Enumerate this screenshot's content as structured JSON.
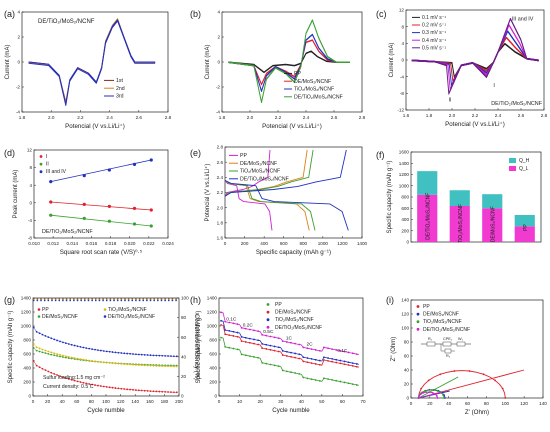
{
  "figure": {
    "panel_letters": [
      "(a)",
      "(b)",
      "(c)",
      "(d)",
      "(e)",
      "(f)",
      "(g)",
      "(h)",
      "(i)"
    ],
    "colors": {
      "black": "#222222",
      "red": "#e0202a",
      "green": "#3aa030",
      "blue": "#2030c0",
      "magenta": "#d020d0",
      "orange": "#e08018",
      "brown": "#8a2a10",
      "purple": "#6a1a8a",
      "gold": "#d8b810",
      "teal": "#40c0c0"
    }
  },
  "chart_data": [
    {
      "panel": "(a)",
      "type": "line",
      "annotation": "DE/TiO₂/MoS₂/NCNF",
      "xlabel": "Potencial (V vs.Li/Li⁺)",
      "ylabel": "Current (mA)",
      "xlim": [
        1.7,
        2.8
      ],
      "ylim": [
        -4.5,
        4.5
      ],
      "xticks": [
        "1.8",
        "2.0",
        "2.2",
        "2.4",
        "2.6",
        "2.8"
      ],
      "yticks": [
        "-4",
        "-2",
        "0",
        "2",
        "4"
      ],
      "legend": [
        "1st",
        "2nd",
        "3rd"
      ],
      "series": [
        {
          "name": "1st",
          "color": "#8a2a10",
          "x": [
            1.75,
            1.9,
            1.98,
            2.03,
            2.06,
            2.12,
            2.2,
            2.26,
            2.3,
            2.33,
            2.38,
            2.42,
            2.47,
            2.52,
            2.55,
            2.6,
            2.7
          ],
          "y": [
            0,
            -0.2,
            -1.2,
            -3.6,
            -1.6,
            -0.5,
            -1.0,
            -1.8,
            -0.5,
            1.9,
            3.2,
            3.8,
            2.2,
            0.6,
            0.0,
            0,
            0
          ]
        },
        {
          "name": "2nd",
          "color": "#e08018",
          "x": [
            1.75,
            1.9,
            1.98,
            2.03,
            2.06,
            2.12,
            2.2,
            2.26,
            2.3,
            2.33,
            2.38,
            2.42,
            2.47,
            2.52,
            2.55,
            2.6,
            2.7
          ],
          "y": [
            0,
            -0.2,
            -1.2,
            -3.7,
            -1.6,
            -0.5,
            -1.0,
            -1.8,
            -0.5,
            1.9,
            3.3,
            3.9,
            2.2,
            0.6,
            0.0,
            0,
            0
          ]
        },
        {
          "name": "3rd",
          "color": "#2030c0",
          "x": [
            1.75,
            1.9,
            1.98,
            2.03,
            2.06,
            2.12,
            2.2,
            2.26,
            2.3,
            2.33,
            2.38,
            2.42,
            2.47,
            2.52,
            2.55,
            2.6,
            2.7
          ],
          "y": [
            0,
            -0.2,
            -1.2,
            -3.8,
            -1.6,
            -0.5,
            -1.0,
            -1.8,
            -0.5,
            1.8,
            3.2,
            3.8,
            2.2,
            0.6,
            0.0,
            0,
            0
          ]
        }
      ]
    },
    {
      "panel": "(b)",
      "type": "line",
      "xlabel": "Potencial (V vs.Li/Li⁺)",
      "ylabel": "Current (mA)",
      "xlim": [
        1.7,
        2.8
      ],
      "ylim": [
        -4.5,
        4.5
      ],
      "xticks": [
        "1.8",
        "2.0",
        "2.2",
        "2.4",
        "2.6",
        "2.8"
      ],
      "yticks": [
        "-4",
        "-2",
        "0",
        "2",
        "4"
      ],
      "legend": [
        "PP",
        "DE/MoS₂/NCNF",
        "TiO₂/MoS₂/NCNF",
        "DE/TiO₂/MoS₂/NCNF"
      ],
      "series": [
        {
          "name": "PP",
          "color": "#222222",
          "x": [
            1.75,
            1.95,
            2.03,
            2.1,
            2.2,
            2.27,
            2.32,
            2.36,
            2.4,
            2.45,
            2.52,
            2.6,
            2.7
          ],
          "y": [
            0,
            -0.2,
            -0.9,
            -0.3,
            -0.2,
            -0.3,
            -0.1,
            0.8,
            1.0,
            0.5,
            0.1,
            0,
            0
          ]
        },
        {
          "name": "DE/MoS₂/NCNF",
          "color": "#e0202a",
          "x": [
            1.75,
            1.95,
            2.01,
            2.05,
            2.12,
            2.2,
            2.27,
            2.32,
            2.36,
            2.41,
            2.46,
            2.53,
            2.6,
            2.7
          ],
          "y": [
            0,
            -0.3,
            -2.0,
            -1.0,
            -0.4,
            -0.8,
            -1.3,
            -0.2,
            1.8,
            2.0,
            1.0,
            0.2,
            0,
            0
          ]
        },
        {
          "name": "TiO₂/MoS₂/NCNF",
          "color": "#2030c0",
          "x": [
            1.75,
            1.95,
            2.01,
            2.05,
            2.12,
            2.2,
            2.27,
            2.32,
            2.36,
            2.41,
            2.46,
            2.53,
            2.6,
            2.7
          ],
          "y": [
            0,
            -0.3,
            -2.6,
            -1.2,
            -0.4,
            -0.9,
            -1.5,
            -0.3,
            2.0,
            2.5,
            1.3,
            0.3,
            0,
            0
          ]
        },
        {
          "name": "DE/TiO₂/MoS₂/NCNF",
          "color": "#3aa030",
          "x": [
            1.75,
            1.95,
            2.01,
            2.05,
            2.12,
            2.2,
            2.27,
            2.32,
            2.36,
            2.41,
            2.46,
            2.53,
            2.6,
            2.7
          ],
          "y": [
            0,
            -0.3,
            -3.6,
            -1.5,
            -0.5,
            -1.0,
            -1.8,
            -0.4,
            2.6,
            3.8,
            2.2,
            0.5,
            0,
            0
          ]
        }
      ]
    },
    {
      "panel": "(c)",
      "type": "line",
      "annotation": "DE/TiO₂/MoS₂/NCNF",
      "xlabel": "Potencial (V vs.Li/Li⁺)",
      "ylabel": "Current (mA)",
      "xlim": [
        1.6,
        2.8
      ],
      "ylim": [
        -12,
        12
      ],
      "xticks": [
        "1.6",
        "1.8",
        "2.0",
        "2.2",
        "2.4",
        "2.6",
        "2.8"
      ],
      "yticks": [
        "-12",
        "-8",
        "-4",
        "0",
        "4",
        "8",
        "12"
      ],
      "peak_labels": [
        "I",
        "II",
        "III and IV"
      ],
      "legend": [
        "0.1 mV s⁻¹",
        "0.2 mV s⁻¹",
        "0.3 mV s⁻¹",
        "0.4 mV s⁻¹",
        "0.5 mV s⁻¹"
      ],
      "series": [
        {
          "name": "0.1 mV s⁻¹",
          "color": "#222222",
          "peak_ox": 4.0,
          "peak_red1": -2.0,
          "peak_red2": -4.0
        },
        {
          "name": "0.2 mV s⁻¹",
          "color": "#e0202a",
          "peak_ox": 5.5,
          "peak_red1": -2.5,
          "peak_red2": -5.0
        },
        {
          "name": "0.3 mV s⁻¹",
          "color": "#2030c0",
          "peak_ox": 7.0,
          "peak_red1": -3.0,
          "peak_red2": -6.0
        },
        {
          "name": "0.4 mV s⁻¹",
          "color": "#d020d0",
          "peak_ox": 8.5,
          "peak_red1": -3.5,
          "peak_red2": -7.0
        },
        {
          "name": "0.5 mV s⁻¹",
          "color": "#6a1a8a",
          "peak_ox": 10.0,
          "peak_red1": -4.0,
          "peak_red2": -8.0
        }
      ]
    },
    {
      "panel": "(d)",
      "type": "scatter",
      "annotation": "DE/TiO₂/MoS₂/NCNF",
      "xlabel": "Square root scan rate (V/S)⁰·⁵",
      "ylabel": "Peak current (mA)",
      "xlim": [
        0.008,
        0.024
      ],
      "ylim": [
        -10,
        12
      ],
      "xticks": [
        "0.010",
        "0.012",
        "0.014",
        "0.016",
        "0.018",
        "0.020",
        "0.022",
        "0.024"
      ],
      "yticks": [
        "-8",
        "-4",
        "0",
        "4",
        "8",
        "12"
      ],
      "x": [
        0.01,
        0.014,
        0.017,
        0.02,
        0.022
      ],
      "series": [
        {
          "name": "I",
          "color": "#e0202a",
          "y": [
            -1.0,
            -1.6,
            -2.1,
            -2.6,
            -3.0
          ]
        },
        {
          "name": "II",
          "color": "#3aa030",
          "y": [
            -4.3,
            -5.1,
            -5.8,
            -6.5,
            -7.0
          ]
        },
        {
          "name": "III and IV",
          "color": "#2030c0",
          "y": [
            4.1,
            5.6,
            7.0,
            8.4,
            9.5
          ]
        }
      ]
    },
    {
      "panel": "(e)",
      "type": "line",
      "xlabel": "Specific capacity (mAh g⁻¹)",
      "ylabel": "Potencial (V vs.Li/Li⁺)",
      "xlim": [
        0,
        1400
      ],
      "ylim": [
        1.6,
        2.8
      ],
      "xticks": [
        "0",
        "200",
        "400",
        "600",
        "800",
        "1000",
        "1200",
        "1400"
      ],
      "yticks": [
        "1.6",
        "1.8",
        "2.0",
        "2.2",
        "2.4",
        "2.6",
        "2.8"
      ],
      "legend": [
        "PP",
        "DE/MoS₂/NCNF",
        "TiO₂/MoS₂/NCNF",
        "DE/TiO₂/MoS₂/NCNF"
      ],
      "series": [
        {
          "name": "PP",
          "color": "#d020d0",
          "discharge_end": 480,
          "charge_end": 460
        },
        {
          "name": "DE/MoS₂/NCNF",
          "color": "#e08018",
          "discharge_end": 860,
          "charge_end": 840
        },
        {
          "name": "TiO₂/MoS₂/NCNF",
          "color": "#3aa030",
          "discharge_end": 920,
          "charge_end": 900
        },
        {
          "name": "DE/TiO₂/MoS₂/NCNF",
          "color": "#2030c0",
          "discharge_end": 1260,
          "charge_end": 1240
        }
      ]
    },
    {
      "panel": "(f)",
      "type": "bar",
      "ylabel": "Specific capacity (mAh g⁻¹)",
      "ylim": [
        0,
        1600
      ],
      "yticks": [
        "0",
        "200",
        "400",
        "600",
        "800",
        "1000",
        "1200",
        "1400",
        "1600"
      ],
      "categories": [
        "DE/TiO₂/MoS₂/NCNF",
        "TiO₂/MoS₂/NCNF",
        "DE/MoS₂/NCNF",
        "PP"
      ],
      "legend": [
        "Q_H",
        "Q_L"
      ],
      "series": [
        {
          "name": "Q_L",
          "color": "#f03ad0",
          "values": [
            840,
            640,
            600,
            280
          ]
        },
        {
          "name": "Q_H",
          "color": "#40c0c0",
          "values": [
            420,
            280,
            250,
            200
          ]
        }
      ]
    },
    {
      "panel": "(g)",
      "type": "scatter",
      "xlabel": "Cycle numble",
      "ylabel": "Specific capacity (mAh g⁻¹)",
      "y2label": "Coulombic efficiency (%)",
      "annotations": [
        "Sulfur loading:1.5 mg cm⁻²",
        "Current density: 0.5 C"
      ],
      "xlim": [
        0,
        200
      ],
      "ylim": [
        0,
        1600
      ],
      "y2lim": [
        0,
        100
      ],
      "xticks": [
        "0",
        "20",
        "40",
        "60",
        "80",
        "100",
        "120",
        "140",
        "160",
        "180",
        "200"
      ],
      "yticks": [
        "0",
        "200",
        "400",
        "600",
        "800",
        "1000",
        "1200",
        "1400"
      ],
      "y2ticks": [
        "0",
        "20",
        "40",
        "60",
        "80",
        "100"
      ],
      "legend": [
        "PP",
        "DE/MoS₂/NCNF",
        "TiO₂/MoS₂/NCNF",
        "DE/TiO₂/MoS₂/NCNF"
      ],
      "series": [
        {
          "name": "PP",
          "color": "#e0202a",
          "start": 530,
          "end": 30
        },
        {
          "name": "DE/MoS₂/NCNF",
          "color": "#3aa030",
          "start": 760,
          "end": 480
        },
        {
          "name": "TiO₂/MoS₂/NCNF",
          "color": "#d8b810",
          "start": 820,
          "end": 460
        },
        {
          "name": "DE/TiO₂/MoS₂/NCNF",
          "color": "#2030c0",
          "start": 1080,
          "end": 620
        }
      ],
      "efficiency_pct": 99
    },
    {
      "panel": "(h)",
      "type": "line",
      "xlabel": "Cycle numble",
      "ylabel": "Specific capacity (mAh g⁻¹)",
      "xlim": [
        0,
        70
      ],
      "ylim": [
        0,
        1400
      ],
      "xticks": [
        "0",
        "10",
        "20",
        "30",
        "40",
        "50",
        "60",
        "70"
      ],
      "yticks": [
        "0",
        "200",
        "400",
        "600",
        "800",
        "1000",
        "1200",
        "1400"
      ],
      "rate_labels": [
        "0.1C",
        "0.2C",
        "0.5C",
        "1C",
        "2C",
        "0.1C"
      ],
      "legend": [
        "PP",
        "DE/MoS₂/NCNF",
        "TiO₂/MoS₂/NCNF",
        "DE/TiO₂/MoS₂/NCNF"
      ],
      "series": [
        {
          "name": "PP",
          "color": "#3aa030",
          "steps": [
            720,
            600,
            480,
            370,
            270,
            260
          ]
        },
        {
          "name": "DE/MoS₂/NCNF",
          "color": "#e0202a",
          "steps": [
            900,
            790,
            690,
            590,
            500,
            520
          ]
        },
        {
          "name": "TiO₂/MoS₂/NCNF",
          "color": "#2030c0",
          "steps": [
            960,
            850,
            750,
            650,
            560,
            560
          ]
        },
        {
          "name": "DE/TiO₂/MoS₂/NCNF",
          "color": "#d020d0",
          "steps": [
            1080,
            980,
            880,
            790,
            700,
            700
          ]
        }
      ]
    },
    {
      "panel": "(i)",
      "type": "line",
      "xlabel": "Z' (Ohm)",
      "ylabel": "Z'' (Ohm)",
      "xlim": [
        0,
        140
      ],
      "ylim": [
        0,
        140
      ],
      "xticks": [
        "0",
        "20",
        "40",
        "60",
        "80",
        "100",
        "120",
        "140"
      ],
      "yticks": [
        "0",
        "20",
        "40",
        "60",
        "80",
        "100",
        "120",
        "140"
      ],
      "circuit_labels": [
        "R₁",
        "R₂",
        "CPE₁",
        "W₁"
      ],
      "legend": [
        "PP",
        "DE/MoS₂/NCNF",
        "TiO₂/MoS₂/NCNF",
        "DE/TiO₂/MoS₂/NCNF"
      ],
      "series": [
        {
          "name": "PP",
          "color": "#e0202a",
          "x0": 8,
          "x1": 100,
          "tail": 40
        },
        {
          "name": "DE/MoS₂/NCNF",
          "color": "#2030c0",
          "x0": 8,
          "x1": 36,
          "tail": 10
        },
        {
          "name": "TiO₂/MoS₂/NCNF",
          "color": "#3aa030",
          "x0": 8,
          "x1": 35,
          "tail": 30
        },
        {
          "name": "DE/TiO₂/MoS₂/NCNF",
          "color": "#d020d0",
          "x0": 8,
          "x1": 28,
          "tail": 8
        }
      ]
    }
  ]
}
